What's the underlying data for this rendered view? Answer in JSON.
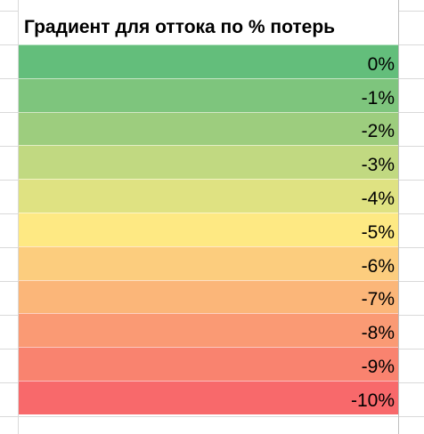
{
  "sheet": {
    "header": "Градиент для оттока по % потерь",
    "rows": [
      {
        "label": "0%",
        "color": "#63be7b"
      },
      {
        "label": "-1%",
        "color": "#7ec57d"
      },
      {
        "label": "-2%",
        "color": "#9dcd7e"
      },
      {
        "label": "-3%",
        "color": "#c1d981"
      },
      {
        "label": "-4%",
        "color": "#dfe282"
      },
      {
        "label": "-5%",
        "color": "#fee983"
      },
      {
        "label": "-6%",
        "color": "#fccd7e"
      },
      {
        "label": "-7%",
        "color": "#fbb679"
      },
      {
        "label": "-8%",
        "color": "#fa9a74"
      },
      {
        "label": "-9%",
        "color": "#f9836f"
      },
      {
        "label": "-10%",
        "color": "#f8696b"
      }
    ]
  }
}
